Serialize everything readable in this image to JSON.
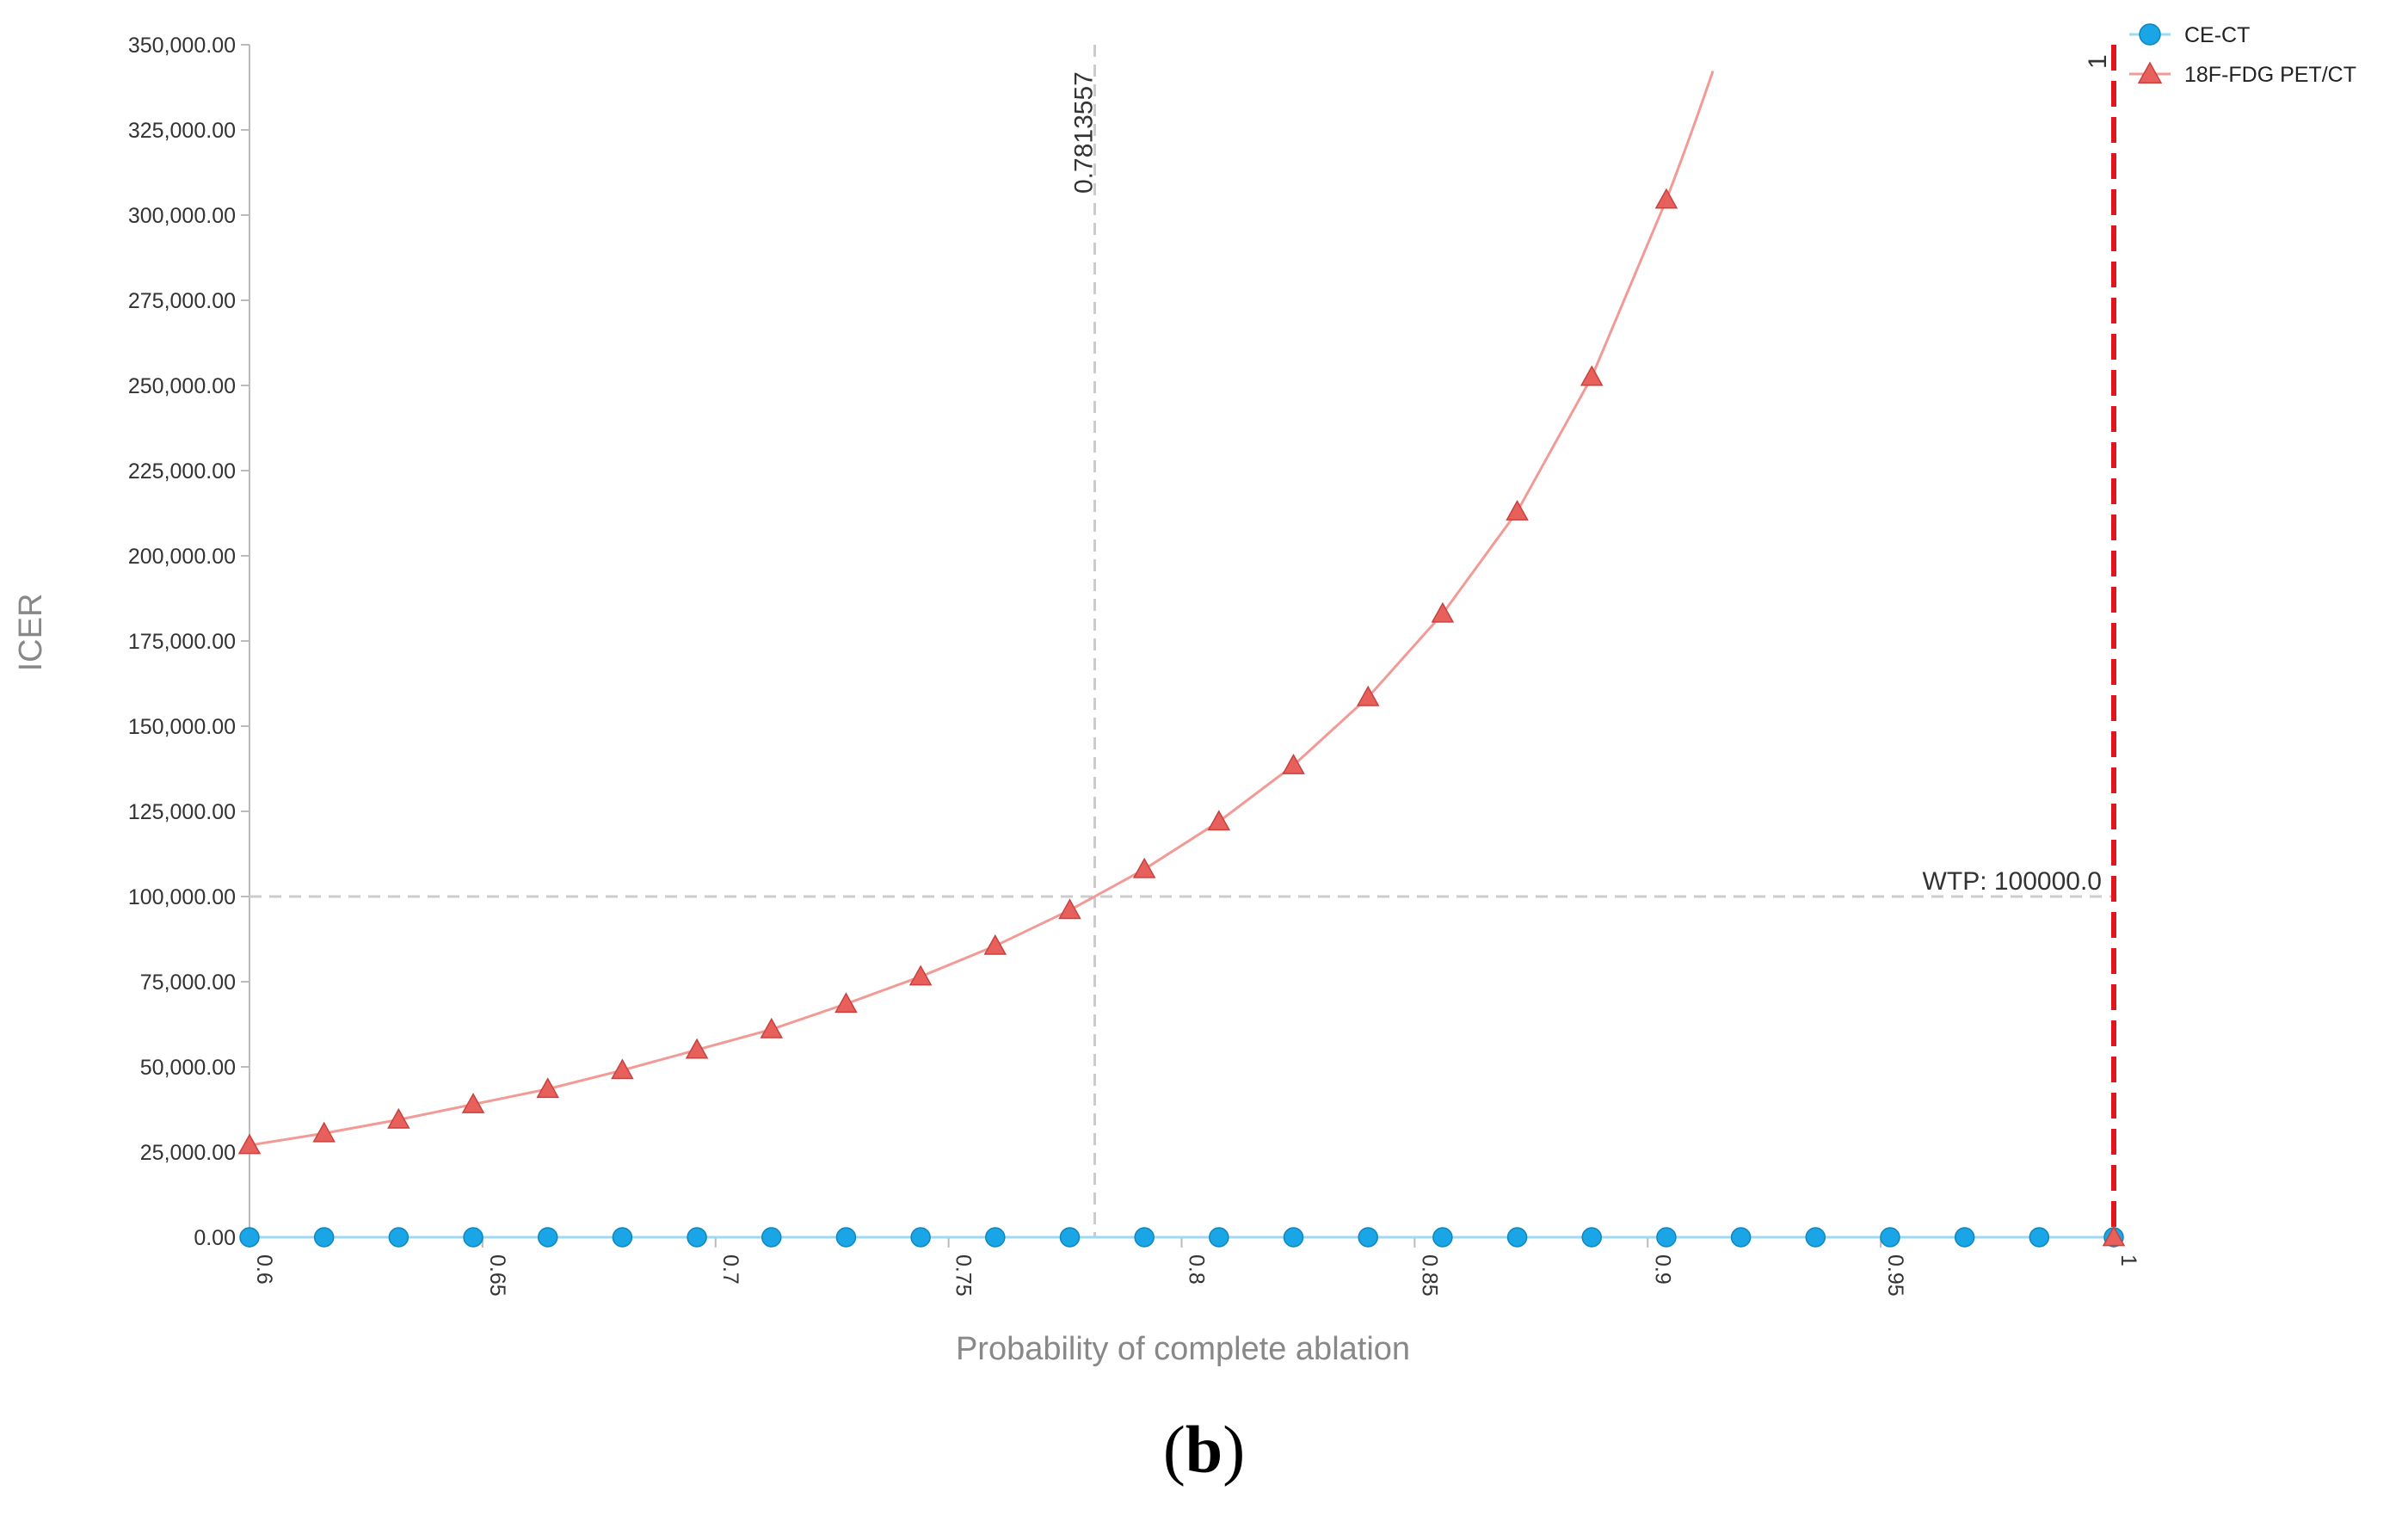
{
  "chart_data": {
    "type": "line",
    "xlabel": "Probability of complete ablation",
    "ylabel": "ICER",
    "xlim": [
      0.6,
      1
    ],
    "ylim": [
      0,
      350000
    ],
    "x_ticks": [
      0.6,
      0.65,
      0.7,
      0.75,
      0.8,
      0.85,
      0.9,
      0.95,
      1
    ],
    "x_tick_labels": [
      "0.6",
      "0.65",
      "0.7",
      "0.75",
      "0.8",
      "0.85",
      "0.9",
      "0.95",
      "1"
    ],
    "y_ticks": [
      0,
      25000,
      50000,
      75000,
      100000,
      125000,
      150000,
      175000,
      200000,
      225000,
      250000,
      275000,
      300000,
      325000,
      350000
    ],
    "y_tick_labels": [
      "0.00",
      "25,000.00",
      "50,000.00",
      "75,000.00",
      "100,000.00",
      "125,000.00",
      "150,000.00",
      "175,000.00",
      "200,000.00",
      "225,000.00",
      "250,000.00",
      "275,000.00",
      "300,000.00",
      "325,000.00",
      "350,000.00"
    ],
    "legend_position": "top-right",
    "series": [
      {
        "name": "CE-CT",
        "marker": "circle",
        "color": "#1aa6e6",
        "line_color": "#9fd8f2",
        "x": [
          0.6,
          0.616,
          0.632,
          0.648,
          0.664,
          0.68,
          0.696,
          0.712,
          0.728,
          0.744,
          0.76,
          0.776,
          0.792,
          0.808,
          0.824,
          0.84,
          0.856,
          0.872,
          0.888,
          0.904,
          0.92,
          0.936,
          0.952,
          0.968,
          0.984,
          1.0
        ],
        "y": [
          0,
          0,
          0,
          0,
          0,
          0,
          0,
          0,
          0,
          0,
          0,
          0,
          0,
          0,
          0,
          0,
          0,
          0,
          0,
          0,
          0,
          0,
          0,
          0,
          0,
          0
        ]
      },
      {
        "name": "18F-FDG PET/CT",
        "marker": "triangle",
        "color": "#e8605c",
        "line_color": "#f19a96",
        "x": [
          0.6,
          0.616,
          0.632,
          0.648,
          0.664,
          0.68,
          0.696,
          0.712,
          0.728,
          0.744,
          0.76,
          0.776,
          0.792,
          0.808,
          0.824,
          0.84,
          0.856,
          0.872,
          0.888,
          0.904,
          1.0
        ],
        "y": [
          27000,
          30500,
          34500,
          39000,
          43500,
          49000,
          55000,
          61000,
          68500,
          76500,
          85500,
          96000,
          108000,
          122000,
          138500,
          158500,
          183000,
          213000,
          252500,
          304500,
          0
        ]
      }
    ],
    "curve_end": {
      "x": 0.914,
      "y": 350000
    },
    "threshold_x": {
      "value": 0.7813557,
      "label": "0.7813557"
    },
    "wtp_line": {
      "value": 100000,
      "label": "WTP: 100000.0"
    },
    "red_line": {
      "value": 1,
      "label": "1",
      "color": "#e0151d"
    }
  },
  "panel_label": {
    "open": "(",
    "letter": "b",
    "close": ")"
  }
}
